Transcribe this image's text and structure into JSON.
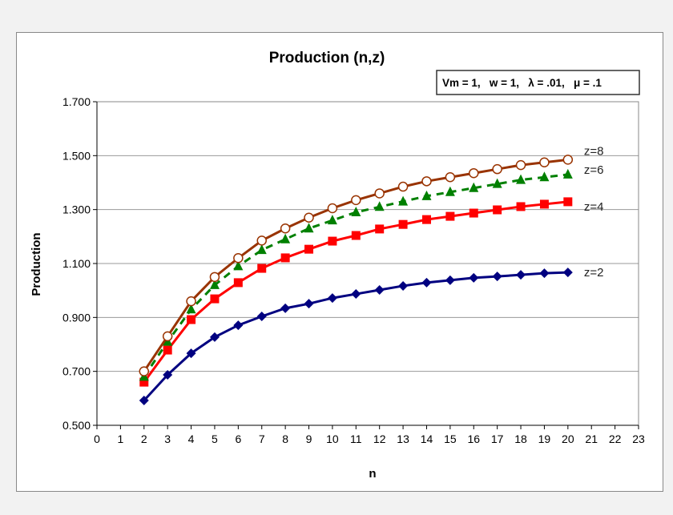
{
  "chart_data": {
    "type": "line",
    "title": "Production (n,z)",
    "annotation": "Vm = 1,   w = 1,   λ = .01,   μ = .1",
    "xlabel": "n",
    "ylabel": "Production",
    "xlim": [
      0,
      23
    ],
    "ylim": [
      0.5,
      1.7
    ],
    "yticks": [
      "0.500",
      "0.700",
      "0.900",
      "1.100",
      "1.300",
      "1.500",
      "1.700"
    ],
    "xticks": [
      "0",
      "1",
      "2",
      "3",
      "4",
      "5",
      "6",
      "7",
      "8",
      "9",
      "10",
      "11",
      "12",
      "13",
      "14",
      "15",
      "16",
      "17",
      "18",
      "19",
      "20",
      "21",
      "22",
      "23"
    ],
    "grid": "horizontal",
    "x": [
      2,
      3,
      4,
      5,
      6,
      7,
      8,
      9,
      10,
      11,
      12,
      13,
      14,
      15,
      16,
      17,
      18,
      19,
      20
    ],
    "series": [
      {
        "name": "z=2",
        "color": "#000080",
        "marker": "diamond",
        "dash": false,
        "values": [
          0.592,
          0.687,
          0.767,
          0.827,
          0.871,
          0.904,
          0.934,
          0.951,
          0.972,
          0.987,
          1.002,
          1.017,
          1.029,
          1.038,
          1.047,
          1.052,
          1.058,
          1.064,
          1.067
        ]
      },
      {
        "name": "z=4",
        "color": "#ff0000",
        "marker": "square",
        "dash": false,
        "values": [
          0.66,
          0.779,
          0.892,
          0.969,
          1.029,
          1.082,
          1.121,
          1.153,
          1.183,
          1.204,
          1.228,
          1.245,
          1.263,
          1.275,
          1.287,
          1.299,
          1.311,
          1.32,
          1.329
        ]
      },
      {
        "name": "z=6",
        "color": "#008000",
        "marker": "triangle",
        "dash": true,
        "values": [
          0.68,
          0.81,
          0.93,
          1.02,
          1.09,
          1.15,
          1.19,
          1.23,
          1.26,
          1.29,
          1.31,
          1.33,
          1.35,
          1.365,
          1.38,
          1.395,
          1.41,
          1.42,
          1.43
        ]
      },
      {
        "name": "z=8",
        "color": "#993300",
        "marker": "circle",
        "dash": false,
        "values": [
          0.7,
          0.83,
          0.96,
          1.05,
          1.12,
          1.185,
          1.23,
          1.27,
          1.305,
          1.335,
          1.36,
          1.385,
          1.405,
          1.42,
          1.435,
          1.45,
          1.465,
          1.475,
          1.485
        ]
      }
    ]
  }
}
